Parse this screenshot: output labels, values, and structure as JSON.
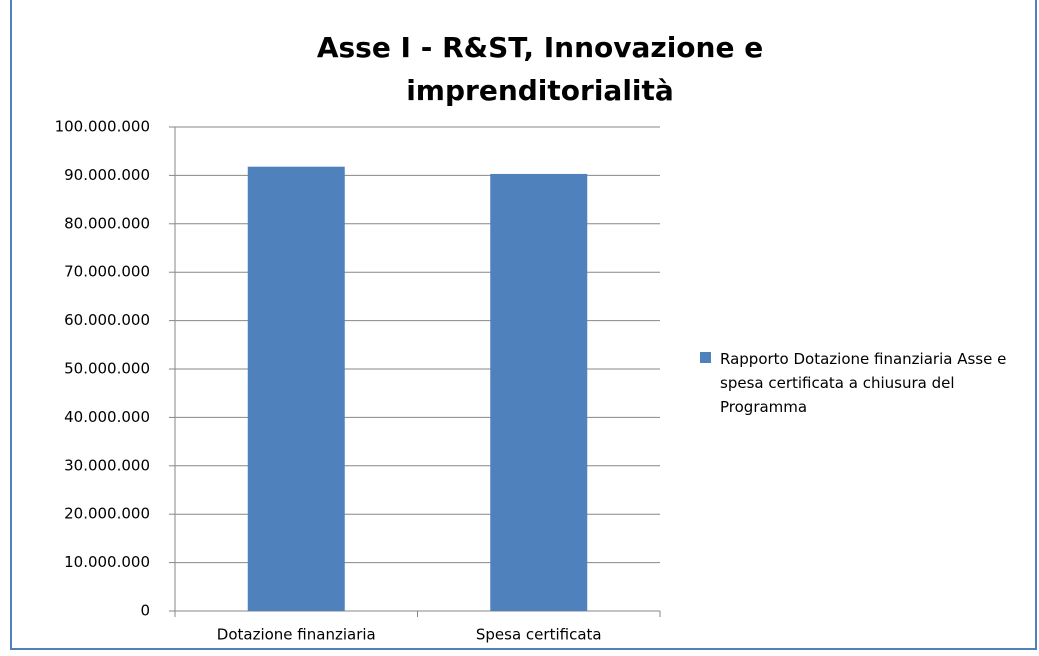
{
  "chart_data": {
    "type": "bar",
    "title": "Asse I - R&ST, Innovazione e imprenditorialità",
    "categories": [
      "Dotazione finanziaria",
      "Spesa certificata"
    ],
    "series": [
      {
        "name": "Rapporto Dotazione finanziaria Asse e spesa certificata a chiusura del Programma",
        "color": "#4f81bd",
        "values": [
          91800000,
          90300000
        ]
      }
    ],
    "ylim": [
      0,
      100000000
    ],
    "yticks": [
      0,
      {
        "value": 10000000,
        "label": "10.000.000"
      },
      {
        "value": 20000000,
        "label": "20.000.000"
      },
      {
        "value": 30000000,
        "label": "30.000.000"
      },
      {
        "value": 40000000,
        "label": "40.000.000"
      },
      {
        "value": 50000000,
        "label": "50.000.000"
      },
      {
        "value": 60000000,
        "label": "60.000.000"
      },
      {
        "value": 70000000,
        "label": "70.000.000"
      },
      {
        "value": 80000000,
        "label": "80.000.000"
      },
      {
        "value": 90000000,
        "label": "90.000.000"
      },
      {
        "value": 100000000,
        "label": "100.000.000"
      }
    ],
    "grid": true,
    "legend": "right"
  }
}
